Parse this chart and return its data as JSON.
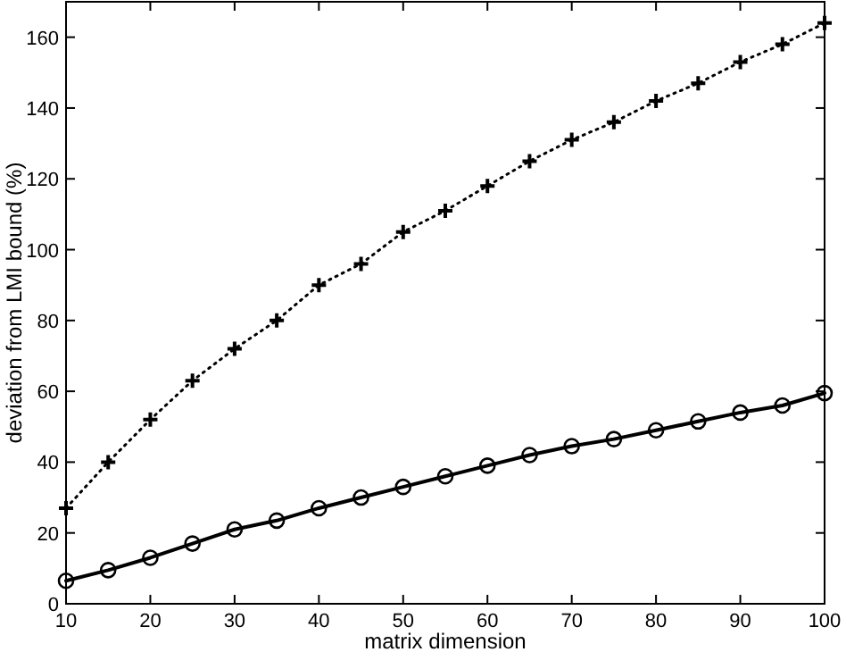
{
  "chart_data": {
    "type": "line",
    "xlabel": "matrix dimension",
    "ylabel": "deviation from LMI bound (%)",
    "x": [
      10,
      15,
      20,
      25,
      30,
      35,
      40,
      45,
      50,
      55,
      60,
      65,
      70,
      75,
      80,
      85,
      90,
      95,
      100
    ],
    "xlim": [
      10,
      100
    ],
    "xticks": [
      10,
      20,
      30,
      40,
      50,
      60,
      70,
      80,
      90,
      100
    ],
    "ylim": [
      0,
      170
    ],
    "yticks": [
      0,
      20,
      40,
      60,
      80,
      100,
      120,
      140,
      160
    ],
    "grid": false,
    "series": [
      {
        "color": "#000000",
        "marker": "cross",
        "line_style": "dotted",
        "values": [
          27,
          40,
          52,
          63,
          72,
          80,
          90,
          96,
          105,
          111,
          118,
          125,
          131,
          136,
          142,
          147,
          153,
          158,
          164
        ]
      },
      {
        "color": "#000000",
        "marker": "circle",
        "line_style": "solid",
        "values": [
          6.5,
          9.5,
          13,
          17,
          21,
          23.5,
          27,
          30,
          33,
          36,
          39,
          42,
          44.5,
          46.5,
          49,
          51.5,
          54,
          56,
          59.5
        ]
      }
    ]
  }
}
